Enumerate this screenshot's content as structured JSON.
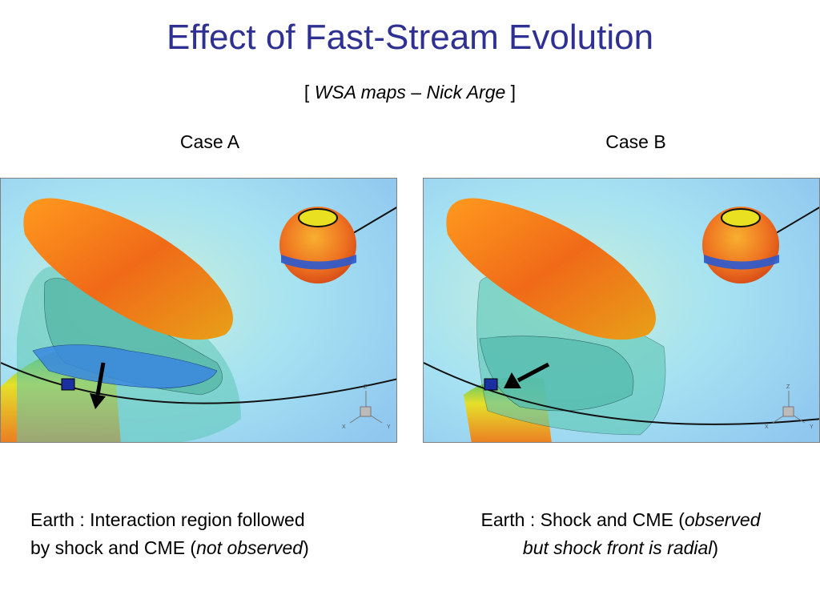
{
  "slide": {
    "title": "Effect of Fast-Stream Evolution",
    "subtitle": {
      "open": "[ ",
      "italic_part1": "WSA maps",
      "dash": " – ",
      "italic_part2": "Nick Arge",
      "close": " ]"
    }
  },
  "panels": [
    {
      "case_label": "Case A",
      "axis_labels": {
        "z": "Z",
        "x": "X",
        "y": "Y"
      },
      "caption": {
        "line1": "Earth : Interaction region followed",
        "line2_prefix": "by shock and CME (",
        "line2_italic": "not observed",
        "line2_suffix": ")"
      }
    },
    {
      "case_label": "Case B",
      "axis_labels": {
        "z": "Z",
        "x": "X",
        "y": "Y"
      },
      "caption": {
        "line1_prefix": "Earth : Shock and CME (",
        "line1_italic": "observed",
        "line2_italic": "but shock front is radial",
        "line2_suffix": ")"
      }
    }
  ],
  "colors": {
    "title": "#2e3192",
    "background_field": "#9fd9f0",
    "cloud_orange": "#f07a1e",
    "earth_marker": "#1a2fa0"
  }
}
